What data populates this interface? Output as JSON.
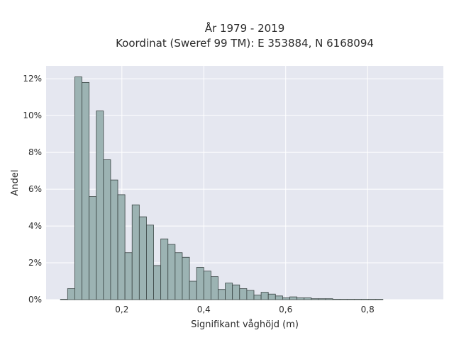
{
  "chart_data": {
    "type": "bar",
    "title": "År 1979 - 2019",
    "subtitle": "Koordinat (Sweref 99 TM): E 353884, N 6168094",
    "xlabel": "Signifikant våghöjd (m)",
    "ylabel": "Andel",
    "xlim": [
      0.015,
      0.985
    ],
    "ylim": [
      0,
      12.7
    ],
    "x_ticks": [
      {
        "value": 0.2,
        "label": "0,2"
      },
      {
        "value": 0.4,
        "label": "0,4"
      },
      {
        "value": 0.6,
        "label": "0,6"
      },
      {
        "value": 0.8,
        "label": "0,8"
      }
    ],
    "y_ticks": [
      {
        "value": 0,
        "label": "0%"
      },
      {
        "value": 2,
        "label": "2%"
      },
      {
        "value": 4,
        "label": "4%"
      },
      {
        "value": 6,
        "label": "6%"
      },
      {
        "value": 8,
        "label": "8%"
      },
      {
        "value": 10,
        "label": "10%"
      },
      {
        "value": 12,
        "label": "12%"
      }
    ],
    "bin_width": 0.0175,
    "bin_start": 0.05,
    "values": [
      0.02,
      0.6,
      12.1,
      11.8,
      5.6,
      10.25,
      7.6,
      6.5,
      5.7,
      2.55,
      5.15,
      4.5,
      4.05,
      1.85,
      3.3,
      3.0,
      2.55,
      2.3,
      1.0,
      1.75,
      1.55,
      1.25,
      0.55,
      0.9,
      0.8,
      0.6,
      0.5,
      0.25,
      0.4,
      0.3,
      0.2,
      0.1,
      0.15,
      0.1,
      0.1,
      0.05,
      0.05,
      0.05,
      0.02,
      0.02,
      0.02,
      0.02,
      0.02,
      0.02,
      0.02
    ],
    "grid": true,
    "colors": {
      "plot_background": "#e5e7f0",
      "bar_fill": "#9cb3b3",
      "bar_stroke": "#3a4544",
      "grid": "#ffffff",
      "text": "#2b2b2b"
    }
  }
}
